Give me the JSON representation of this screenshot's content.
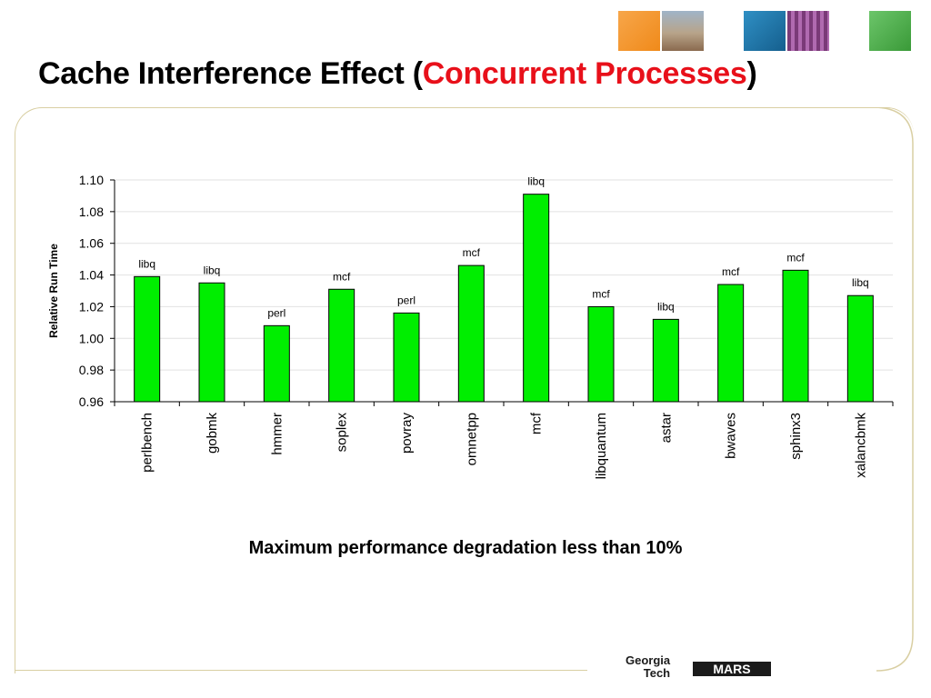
{
  "slide": {
    "title_main": "Cache Interference Effect (",
    "title_highlight": "Concurrent Processes",
    "title_end": ")",
    "subtitle": "Maximum performance degradation less than 10%",
    "footer_org": "Georgia",
    "footer_org2": "Tech",
    "footer_brand": "MARS"
  },
  "colors": {
    "bar_fill": "#00ee00",
    "bar_stroke": "#000000",
    "title_highlight": "#e8101a",
    "frame": "#d9cfa3"
  },
  "chart_data": {
    "type": "bar",
    "title": "",
    "xlabel": "",
    "ylabel": "Relative Run Time",
    "ylim": [
      0.96,
      1.1
    ],
    "yticks": [
      "0.96",
      "0.98",
      "1.00",
      "1.02",
      "1.04",
      "1.06",
      "1.08",
      "1.10"
    ],
    "grid": true,
    "categories": [
      "perlbench",
      "gobmk",
      "hmmer",
      "soplex",
      "povray",
      "omnetpp",
      "mcf",
      "libquantum",
      "astar",
      "bwaves",
      "sphinx3",
      "xalancbmk"
    ],
    "values": [
      1.039,
      1.035,
      1.008,
      1.031,
      1.016,
      1.046,
      1.091,
      1.02,
      1.012,
      1.034,
      1.043,
      1.027
    ],
    "bar_labels": [
      "libq",
      "libq",
      "perl",
      "mcf",
      "perl",
      "mcf",
      "libq",
      "mcf",
      "libq",
      "mcf",
      "mcf",
      "libq"
    ]
  }
}
